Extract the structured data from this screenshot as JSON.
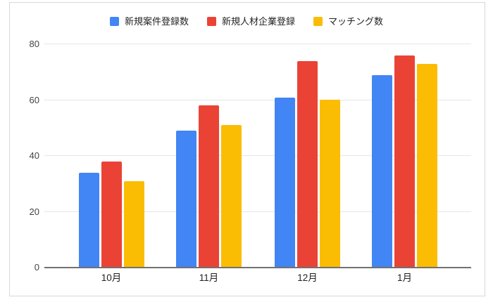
{
  "chart_data": {
    "type": "bar",
    "title": "",
    "xlabel": "",
    "ylabel": "",
    "categories": [
      "10月",
      "11月",
      "12月",
      "1月"
    ],
    "series": [
      {
        "name": "新規案件登録数",
        "color": "#4285F4",
        "values": [
          34,
          49,
          61,
          69
        ]
      },
      {
        "name": "新規人材企業登録",
        "color": "#EA4335",
        "values": [
          38,
          58,
          74,
          76
        ]
      },
      {
        "name": "マッチング数",
        "color": "#FBBC04",
        "values": [
          31,
          51,
          60,
          73
        ]
      }
    ],
    "ylim": [
      0,
      80
    ],
    "yticks": [
      0,
      20,
      40,
      60,
      80
    ],
    "grid": true,
    "legend_position": "top"
  }
}
